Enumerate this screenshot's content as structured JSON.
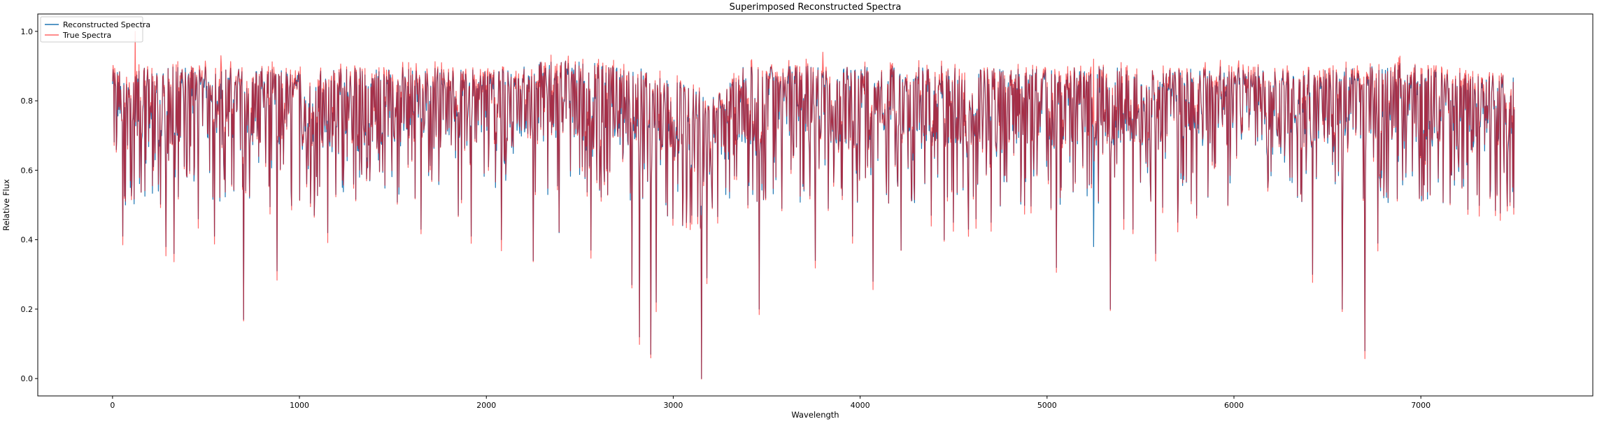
{
  "chart_data": {
    "type": "line",
    "title": "Superimposed Reconstructed Spectra",
    "xlabel": "Wavelength",
    "ylabel": "Relative Flux",
    "xlim": [
      -400,
      7920
    ],
    "ylim": [
      -0.05,
      1.05
    ],
    "xticks": [
      0,
      1000,
      2000,
      3000,
      4000,
      5000,
      6000,
      7000
    ],
    "xtick_labels": [
      "0",
      "1000",
      "2000",
      "3000",
      "4000",
      "5000",
      "6000",
      "7000"
    ],
    "yticks": [
      0.0,
      0.2,
      0.4,
      0.6,
      0.8,
      1.0
    ],
    "ytick_labels": [
      "0.0",
      "0.2",
      "0.4",
      "0.6",
      "0.8",
      "1.0"
    ],
    "grid": false,
    "legend_position": "top-left",
    "series": [
      {
        "name": "Reconstructed Spectra",
        "color": "#1f77b4",
        "x_range": [
          0,
          7500
        ],
        "continuum": [
          [
            0,
            0.86
          ],
          [
            400,
            0.87
          ],
          [
            1000,
            0.86
          ],
          [
            1500,
            0.87
          ],
          [
            2000,
            0.86
          ],
          [
            2400,
            0.89
          ],
          [
            2800,
            0.87
          ],
          [
            3050,
            0.82
          ],
          [
            3200,
            0.78
          ],
          [
            3400,
            0.88
          ],
          [
            3800,
            0.87
          ],
          [
            4500,
            0.87
          ],
          [
            5000,
            0.86
          ],
          [
            5300,
            0.87
          ],
          [
            5600,
            0.86
          ],
          [
            6000,
            0.87
          ],
          [
            6500,
            0.86
          ],
          [
            6900,
            0.88
          ],
          [
            7200,
            0.86
          ],
          [
            7500,
            0.84
          ]
        ],
        "absorption_features": [
          {
            "x": 55,
            "y": 0.41
          },
          {
            "x": 70,
            "y": 0.5
          },
          {
            "x": 95,
            "y": 0.55
          },
          {
            "x": 180,
            "y": 0.62
          },
          {
            "x": 245,
            "y": 0.54
          },
          {
            "x": 285,
            "y": 0.38
          },
          {
            "x": 330,
            "y": 0.36
          },
          {
            "x": 395,
            "y": 0.59
          },
          {
            "x": 460,
            "y": 0.46
          },
          {
            "x": 545,
            "y": 0.41
          },
          {
            "x": 650,
            "y": 0.54
          },
          {
            "x": 700,
            "y": 0.17
          },
          {
            "x": 880,
            "y": 0.31
          },
          {
            "x": 1080,
            "y": 0.47
          },
          {
            "x": 1150,
            "y": 0.42
          },
          {
            "x": 1195,
            "y": 0.53
          },
          {
            "x": 1290,
            "y": 0.56
          },
          {
            "x": 1380,
            "y": 0.63
          },
          {
            "x": 1650,
            "y": 0.43
          },
          {
            "x": 1850,
            "y": 0.47
          },
          {
            "x": 1920,
            "y": 0.41
          },
          {
            "x": 2050,
            "y": 0.55
          },
          {
            "x": 2080,
            "y": 0.4
          },
          {
            "x": 2250,
            "y": 0.34
          },
          {
            "x": 2330,
            "y": 0.53
          },
          {
            "x": 2390,
            "y": 0.42
          },
          {
            "x": 2560,
            "y": 0.37
          },
          {
            "x": 2650,
            "y": 0.53
          },
          {
            "x": 2780,
            "y": 0.27
          },
          {
            "x": 2820,
            "y": 0.12
          },
          {
            "x": 2880,
            "y": 0.07
          },
          {
            "x": 2910,
            "y": 0.22
          },
          {
            "x": 2960,
            "y": 0.5
          },
          {
            "x": 3050,
            "y": 0.44
          },
          {
            "x": 3100,
            "y": 0.47
          },
          {
            "x": 3150,
            "y": 0.0
          },
          {
            "x": 3180,
            "y": 0.29
          },
          {
            "x": 3280,
            "y": 0.53
          },
          {
            "x": 3400,
            "y": 0.5
          },
          {
            "x": 3460,
            "y": 0.2
          },
          {
            "x": 3580,
            "y": 0.49
          },
          {
            "x": 3700,
            "y": 0.54
          },
          {
            "x": 3760,
            "y": 0.34
          },
          {
            "x": 3830,
            "y": 0.49
          },
          {
            "x": 3900,
            "y": 0.55
          },
          {
            "x": 3960,
            "y": 0.41
          },
          {
            "x": 4070,
            "y": 0.28
          },
          {
            "x": 4220,
            "y": 0.37
          },
          {
            "x": 4380,
            "y": 0.47
          },
          {
            "x": 4450,
            "y": 0.4
          },
          {
            "x": 4500,
            "y": 0.45
          },
          {
            "x": 4580,
            "y": 0.43
          },
          {
            "x": 4620,
            "y": 0.46
          },
          {
            "x": 4700,
            "y": 0.45
          },
          {
            "x": 5050,
            "y": 0.32
          },
          {
            "x": 5250,
            "y": 0.38
          },
          {
            "x": 5340,
            "y": 0.2
          },
          {
            "x": 5410,
            "y": 0.46
          },
          {
            "x": 5460,
            "y": 0.43
          },
          {
            "x": 5580,
            "y": 0.36
          },
          {
            "x": 5700,
            "y": 0.45
          },
          {
            "x": 5800,
            "y": 0.47
          },
          {
            "x": 5900,
            "y": 0.62
          },
          {
            "x": 6180,
            "y": 0.55
          },
          {
            "x": 6300,
            "y": 0.57
          },
          {
            "x": 6420,
            "y": 0.3
          },
          {
            "x": 6580,
            "y": 0.2
          },
          {
            "x": 6700,
            "y": 0.08
          },
          {
            "x": 6770,
            "y": 0.39
          },
          {
            "x": 6920,
            "y": 0.58
          },
          {
            "x": 7050,
            "y": 0.53
          },
          {
            "x": 7300,
            "y": 0.53
          },
          {
            "x": 7460,
            "y": 0.57
          }
        ]
      },
      {
        "name": "True Spectra",
        "color": "#ff0000",
        "opacity": 0.6,
        "x_range": [
          0,
          7500
        ],
        "peaks": [
          {
            "x": 120,
            "y": 1.0
          },
          {
            "x": 580,
            "y": 0.93
          },
          {
            "x": 3800,
            "y": 0.94
          },
          {
            "x": 5250,
            "y": 0.92
          }
        ]
      }
    ]
  }
}
